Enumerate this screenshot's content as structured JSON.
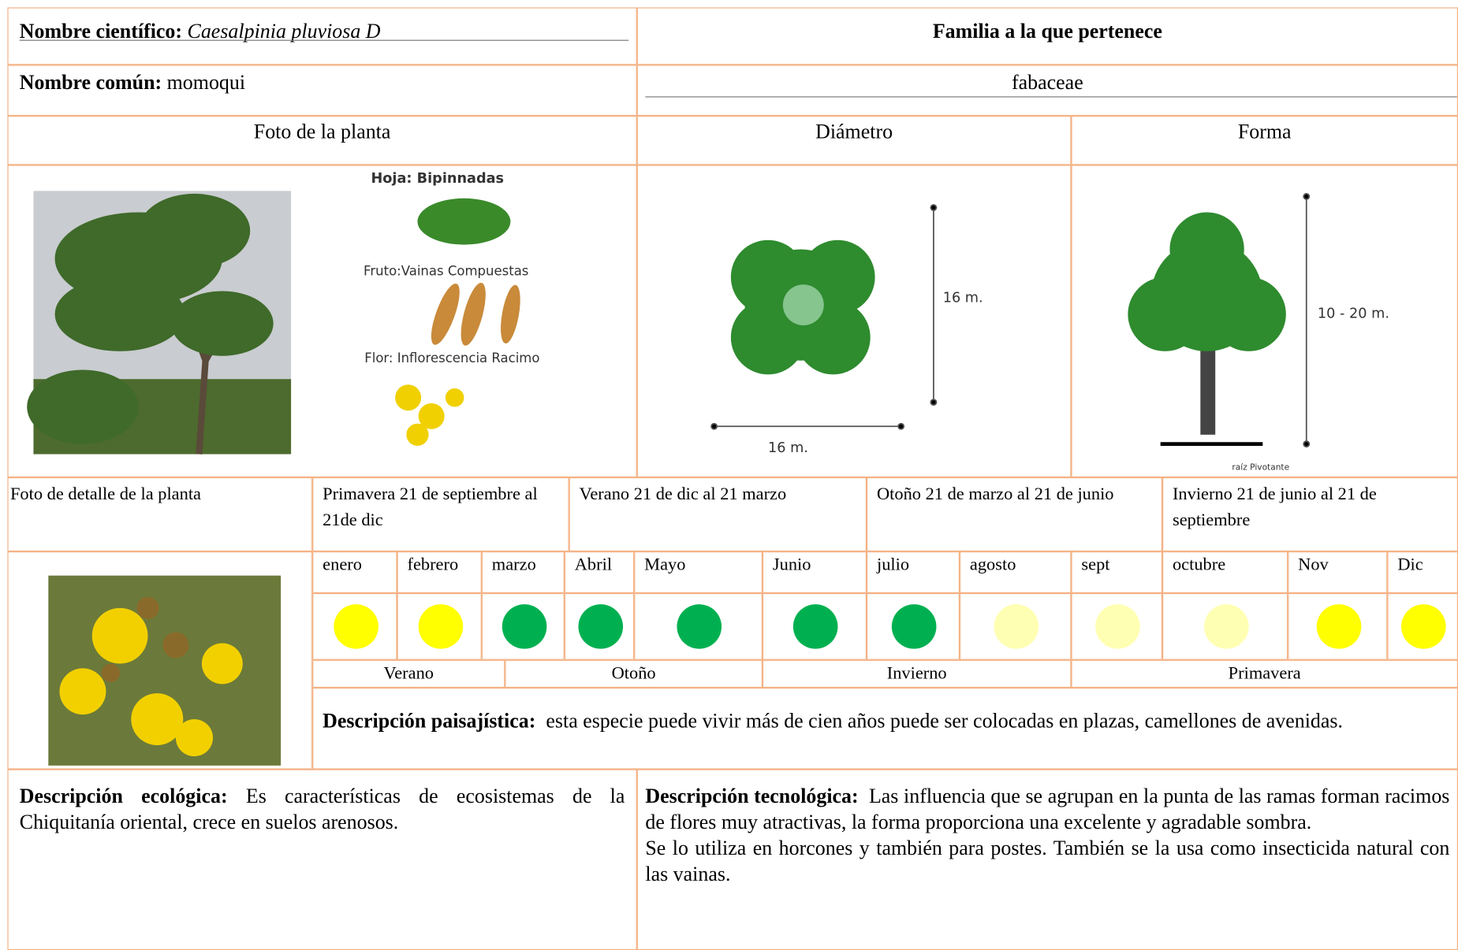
{
  "scientific_name": {
    "label": "Nombre científico:",
    "value": "Caesalpinia pluviosa D"
  },
  "family": {
    "label": "Familia a la que pertenece",
    "value": "fabaceae"
  },
  "common_name": {
    "label": "Nombre común:",
    "value": "momoqui"
  },
  "headers": {
    "photo": "Foto de la planta",
    "diameter": "Diámetro",
    "shape": "Forma",
    "detail_photo": "Foto de detalle de la planta"
  },
  "illustration_labels": {
    "leaf": "Hoja: Bipinnadas",
    "fruit": "Fruto:Vainas Compuestas",
    "flower": "Flor: Inflorescencia Racimo",
    "diameter_height": "16 m.",
    "diameter_width": "16 m.",
    "shape_height": "10 - 20 m.",
    "root": "raíz Pivotante"
  },
  "season_dates": [
    "Primavera 21 de septiembre al 21de dic",
    "Verano 21 de dic al 21 marzo",
    "Otoño 21 de marzo al 21 de junio",
    "Invierno 21 de junio al 21 de septiembre"
  ],
  "months": [
    {
      "name": "enero",
      "color": "#ffff00"
    },
    {
      "name": "febrero",
      "color": "#ffff00"
    },
    {
      "name": "marzo",
      "color": "#00b050"
    },
    {
      "name": "Abril",
      "color": "#00b050"
    },
    {
      "name": "Mayo",
      "color": "#00b050"
    },
    {
      "name": "Junio",
      "color": "#00b050"
    },
    {
      "name": "julio",
      "color": "#00b050"
    },
    {
      "name": "agosto",
      "color": "#ffffb3"
    },
    {
      "name": "sept",
      "color": "#ffffb3"
    },
    {
      "name": "octubre",
      "color": "#ffffb3"
    },
    {
      "name": "Nov",
      "color": "#ffff00"
    },
    {
      "name": "Dic",
      "color": "#ffff00"
    }
  ],
  "seasons": [
    "Verano",
    "Otoño",
    "Invierno",
    "Primavera"
  ],
  "landscape": {
    "label": "Descripción paisajística:",
    "text": "esta especie puede vivir más de cien años puede ser colocadas en plazas, camellones de avenidas."
  },
  "ecological": {
    "label": "Descripción ecológica:",
    "text": "Es características de ecosistemas de la Chiquitanía oriental, crece en suelos arenosos."
  },
  "technological": {
    "label": "Descripción tecnológica:",
    "paragraphs": [
      "Las influencia que se agrupan en la punta de las ramas forman racimos de flores muy atractivas, la forma proporciona una excelente y agradable sombra.",
      "Se lo utiliza en horcones y también para postes. También se la usa como insecticida natural con las vainas."
    ]
  }
}
